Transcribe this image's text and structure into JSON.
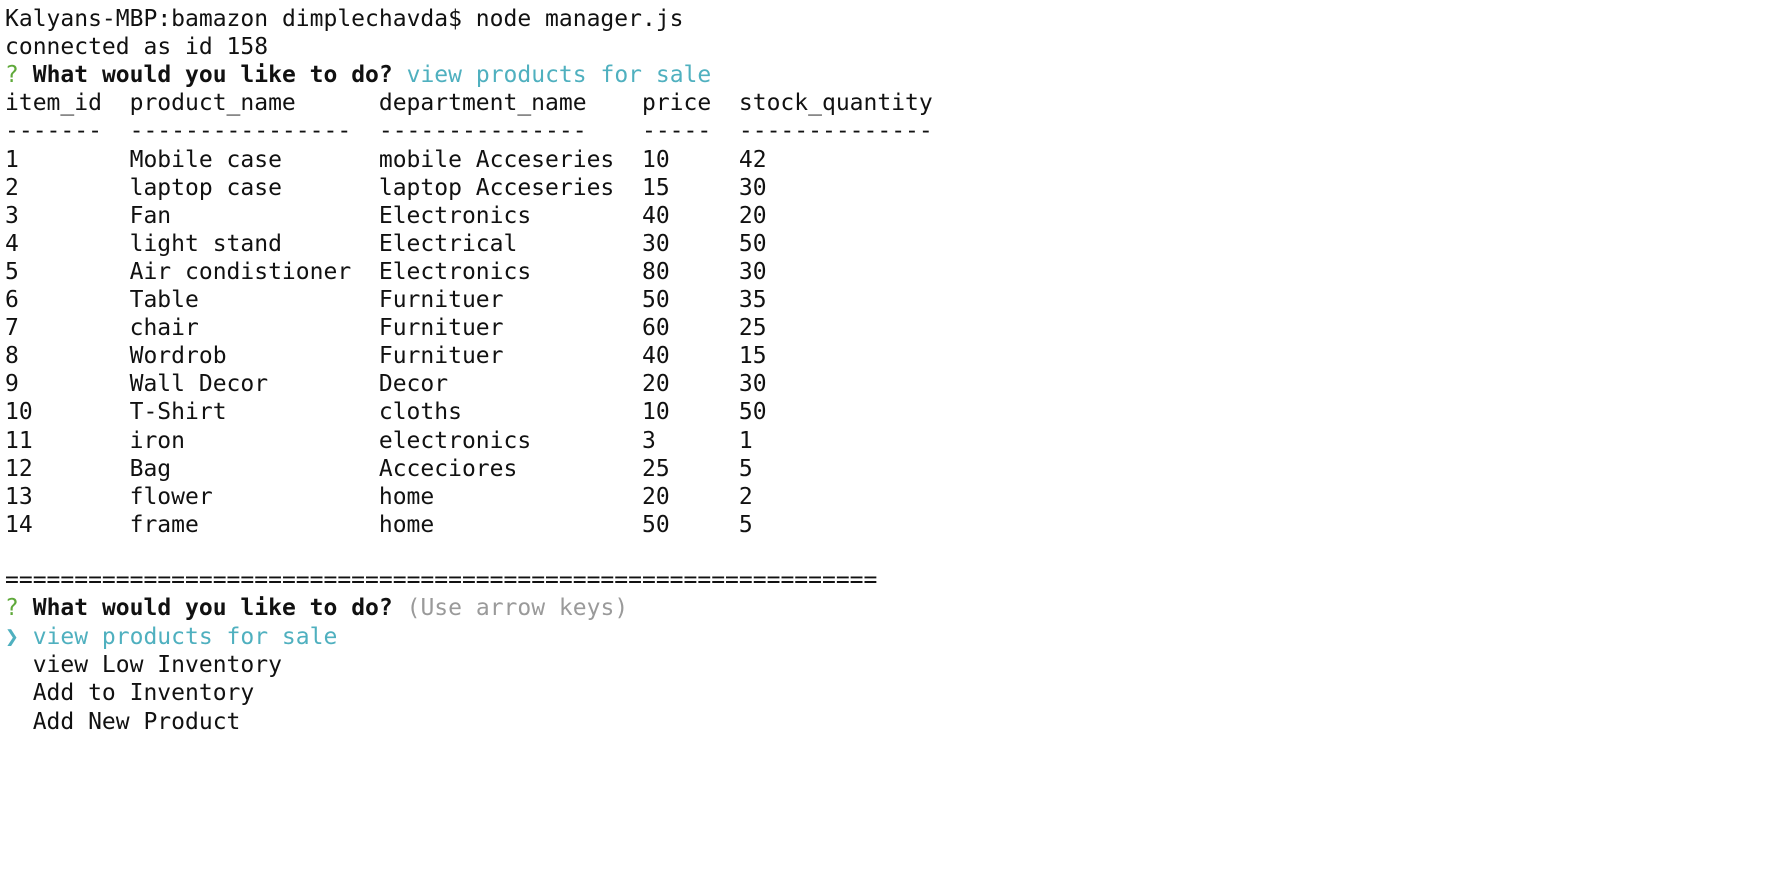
{
  "terminal": {
    "command_line": "Kalyans-MBP:bamazon dimplechavda$ node manager.js",
    "connection": "connected as id 158",
    "prompt1": {
      "mark": "?",
      "question": "What would you like to do?",
      "answer": "view products for sale"
    },
    "table": {
      "headers": [
        "item_id",
        "product_name",
        "department_name",
        "price",
        "stock_quantity"
      ],
      "separators": [
        "-------",
        "----------------",
        "---------------",
        "-----",
        "--------------"
      ],
      "rows": [
        [
          1,
          "Mobile case",
          "mobile Acceseries",
          10,
          42
        ],
        [
          2,
          "laptop case",
          "laptop Acceseries",
          15,
          30
        ],
        [
          3,
          "Fan",
          "Electronics",
          40,
          20
        ],
        [
          4,
          "light stand",
          "Electrical",
          30,
          50
        ],
        [
          5,
          "Air condistioner",
          "Electronics",
          80,
          30
        ],
        [
          6,
          "Table",
          "Furnituer",
          50,
          35
        ],
        [
          7,
          "chair",
          "Furnituer",
          60,
          25
        ],
        [
          8,
          "Wordrob",
          "Furnituer",
          40,
          15
        ],
        [
          9,
          "Wall Decor",
          "Decor",
          20,
          30
        ],
        [
          10,
          "T-Shirt",
          "cloths",
          10,
          50
        ],
        [
          11,
          "iron",
          "electronics",
          3,
          1
        ],
        [
          12,
          "Bag",
          "Acceciores",
          25,
          5
        ],
        [
          13,
          "flower",
          "home",
          20,
          2
        ],
        [
          14,
          "frame",
          "home",
          50,
          5
        ]
      ]
    },
    "divider": "===============================================================",
    "prompt2": {
      "mark": "?",
      "question": "What would you like to do?",
      "hint": "(Use arrow keys)"
    },
    "choices": {
      "pointer": "❯",
      "items": [
        "view products for sale",
        "view Low Inventory",
        "Add to Inventory",
        "Add New Product"
      ]
    }
  }
}
